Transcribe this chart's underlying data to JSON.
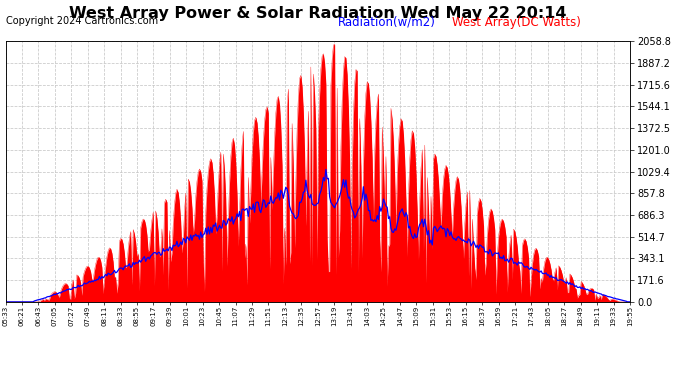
{
  "title": "West Array Power & Solar Radiation Wed May 22 20:14",
  "copyright": "Copyright 2024 Cartronics.com",
  "legend_radiation": "Radiation(w/m2)",
  "legend_west_array": "West Array(DC Watts)",
  "radiation_color": "blue",
  "west_array_color": "red",
  "y_max": 2058.8,
  "y_ticks": [
    0.0,
    171.6,
    343.1,
    514.7,
    686.3,
    857.8,
    1029.4,
    1201.0,
    1372.5,
    1544.1,
    1715.6,
    1887.2,
    2058.8
  ],
  "background_color": "#ffffff",
  "grid_color": "#c8c8c8",
  "title_fontsize": 11.5,
  "copyright_fontsize": 7,
  "legend_fontsize": 8.5,
  "x_labels": [
    "05:33",
    "06:21",
    "06:43",
    "07:05",
    "07:27",
    "07:49",
    "08:11",
    "08:33",
    "08:55",
    "09:17",
    "09:39",
    "10:01",
    "10:23",
    "10:45",
    "11:07",
    "11:29",
    "11:51",
    "12:13",
    "12:35",
    "12:57",
    "13:19",
    "13:41",
    "14:03",
    "14:25",
    "14:47",
    "15:09",
    "15:31",
    "15:53",
    "16:15",
    "16:37",
    "16:59",
    "17:21",
    "17:43",
    "18:05",
    "18:27",
    "18:49",
    "19:11",
    "19:33",
    "19:55"
  ]
}
